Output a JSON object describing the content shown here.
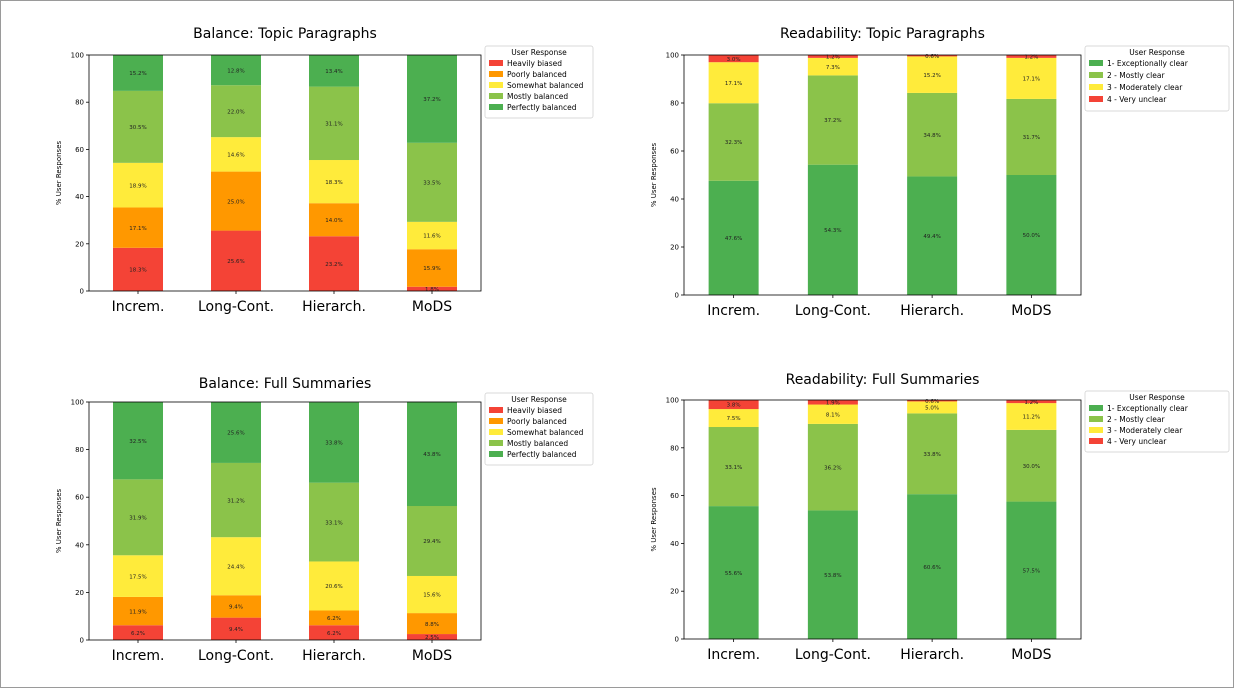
{
  "chart_data": [
    {
      "type": "bar",
      "stacked": true,
      "title": "Balance: Topic Paragraphs",
      "xlabel": "",
      "ylabel": "% User Responses",
      "ylim": [
        0,
        100
      ],
      "yticks": [
        "0",
        "20",
        "40",
        "60",
        "80",
        "100"
      ],
      "categories": [
        "Increm.",
        "Long-Cont.",
        "Hierarch.",
        "MoDS"
      ],
      "legend_title": "User Response",
      "legend_position": "right",
      "series": [
        {
          "name": "Heavily biased",
          "color": "#f44336",
          "values": [
            18.3,
            25.6,
            23.2,
            1.8
          ],
          "labels": [
            "18.3%",
            "25.6%",
            "23.2%",
            "1.8%"
          ]
        },
        {
          "name": "Poorly balanced",
          "color": "#ff9800",
          "values": [
            17.1,
            25.0,
            14.0,
            15.9
          ],
          "labels": [
            "17.1%",
            "25.0%",
            "14.0%",
            "15.9%"
          ]
        },
        {
          "name": "Somewhat balanced",
          "color": "#ffeb3b",
          "values": [
            18.9,
            14.6,
            18.3,
            11.6
          ],
          "labels": [
            "18.9%",
            "14.6%",
            "18.3%",
            "11.6%"
          ]
        },
        {
          "name": "Mostly balanced",
          "color": "#8bc34a",
          "values": [
            30.5,
            22.0,
            31.1,
            33.5
          ],
          "labels": [
            "30.5%",
            "22.0%",
            "31.1%",
            "33.5%"
          ]
        },
        {
          "name": "Perfectly balanced",
          "color": "#4caf50",
          "values": [
            15.2,
            12.8,
            13.4,
            37.2
          ],
          "labels": [
            "15.2%",
            "12.8%",
            "13.4%",
            "37.2%"
          ]
        }
      ]
    },
    {
      "type": "bar",
      "stacked": true,
      "title": "Readability: Topic Paragraphs",
      "xlabel": "",
      "ylabel": "% User Responses",
      "ylim": [
        0,
        100
      ],
      "yticks": [
        "0",
        "20",
        "40",
        "60",
        "80",
        "100"
      ],
      "categories": [
        "Increm.",
        "Long-Cont.",
        "Hierarch.",
        "MoDS"
      ],
      "legend_title": "User Response",
      "legend_position": "right",
      "series": [
        {
          "name": "1- Exceptionally clear",
          "color": "#4caf50",
          "values": [
            47.6,
            54.3,
            49.4,
            50.0
          ],
          "labels": [
            "47.6%",
            "54.3%",
            "49.4%",
            "50.0%"
          ]
        },
        {
          "name": "2 - Mostly clear",
          "color": "#8bc34a",
          "values": [
            32.3,
            37.2,
            34.8,
            31.7
          ],
          "labels": [
            "32.3%",
            "37.2%",
            "34.8%",
            "31.7%"
          ]
        },
        {
          "name": "3 - Moderately clear",
          "color": "#ffeb3b",
          "values": [
            17.1,
            7.3,
            15.2,
            17.1
          ],
          "labels": [
            "17.1%",
            "7.3%",
            "15.2%",
            "17.1%"
          ]
        },
        {
          "name": "4 - Very unclear",
          "color": "#f44336",
          "values": [
            3.0,
            1.2,
            0.6,
            1.2
          ],
          "labels": [
            "3.0%",
            "1.2%",
            "0.6%",
            "1.2%"
          ]
        }
      ]
    },
    {
      "type": "bar",
      "stacked": true,
      "title": "Balance: Full Summaries",
      "xlabel": "",
      "ylabel": "% User Responses",
      "ylim": [
        0,
        100
      ],
      "yticks": [
        "0",
        "20",
        "40",
        "60",
        "80",
        "100"
      ],
      "categories": [
        "Increm.",
        "Long-Cont.",
        "Hierarch.",
        "MoDS"
      ],
      "legend_title": "User Response",
      "legend_position": "right",
      "series": [
        {
          "name": "Heavily biased",
          "color": "#f44336",
          "values": [
            6.2,
            9.4,
            6.2,
            2.5
          ],
          "labels": [
            "6.2%",
            "9.4%",
            "6.2%",
            "2.5%"
          ]
        },
        {
          "name": "Poorly balanced",
          "color": "#ff9800",
          "values": [
            11.9,
            9.4,
            6.2,
            8.8
          ],
          "labels": [
            "11.9%",
            "9.4%",
            "6.2%",
            "8.8%"
          ]
        },
        {
          "name": "Somewhat balanced",
          "color": "#ffeb3b",
          "values": [
            17.5,
            24.4,
            20.6,
            15.6
          ],
          "labels": [
            "17.5%",
            "24.4%",
            "20.6%",
            "15.6%"
          ]
        },
        {
          "name": "Mostly balanced",
          "color": "#8bc34a",
          "values": [
            31.9,
            31.2,
            33.1,
            29.4
          ],
          "labels": [
            "31.9%",
            "31.2%",
            "33.1%",
            "29.4%"
          ]
        },
        {
          "name": "Perfectly balanced",
          "color": "#4caf50",
          "values": [
            32.5,
            25.6,
            33.8,
            43.8
          ],
          "labels": [
            "32.5%",
            "25.6%",
            "33.8%",
            "43.8%"
          ]
        }
      ]
    },
    {
      "type": "bar",
      "stacked": true,
      "title": "Readability: Full Summaries",
      "xlabel": "",
      "ylabel": "% User Responses",
      "ylim": [
        0,
        100
      ],
      "yticks": [
        "0",
        "20",
        "40",
        "60",
        "80",
        "100"
      ],
      "categories": [
        "Increm.",
        "Long-Cont.",
        "Hierarch.",
        "MoDS"
      ],
      "legend_title": "User Response",
      "legend_position": "right",
      "series": [
        {
          "name": "1- Exceptionally clear",
          "color": "#4caf50",
          "values": [
            55.6,
            53.8,
            60.6,
            57.5
          ],
          "labels": [
            "55.6%",
            "53.8%",
            "60.6%",
            "57.5%"
          ]
        },
        {
          "name": "2 - Mostly clear",
          "color": "#8bc34a",
          "values": [
            33.1,
            36.2,
            33.8,
            30.0
          ],
          "labels": [
            "33.1%",
            "36.2%",
            "33.8%",
            "30.0%"
          ]
        },
        {
          "name": "3 - Moderately clear",
          "color": "#ffeb3b",
          "values": [
            7.5,
            8.1,
            5.0,
            11.2
          ],
          "labels": [
            "7.5%",
            "8.1%",
            "5.0%",
            "11.2%"
          ]
        },
        {
          "name": "4 - Very unclear",
          "color": "#f44336",
          "values": [
            3.8,
            1.9,
            0.6,
            1.2
          ],
          "labels": [
            "3.8%",
            "1.9%",
            "0.6%",
            "1.2%"
          ]
        }
      ]
    }
  ]
}
